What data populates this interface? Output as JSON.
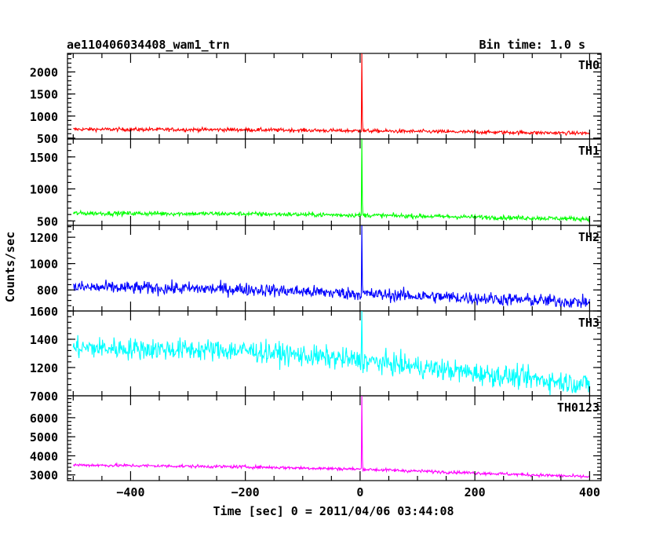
{
  "header": {
    "title": "ae110406034408_wam1_trn",
    "bin_time": "Bin time: 1.0 s"
  },
  "axes": {
    "xlabel": "Time [sec] 0 = 2011/04/06 03:44:08",
    "ylabel": "Counts/sec"
  },
  "chart_data": {
    "type": "line",
    "xlim": [
      -510,
      420
    ],
    "x_ticks": [
      -400,
      -200,
      0,
      200,
      400
    ],
    "x_tick_labels": [
      "−400",
      "−200",
      "0",
      "200",
      "400"
    ],
    "panels": [
      {
        "name": "TH0",
        "color": "#ff0000",
        "ylim": [
          480,
          2420
        ],
        "y_ticks": [
          500,
          1000,
          1500,
          2000
        ],
        "y_tick_labels": [
          "500",
          "1000",
          "1500",
          "2000"
        ],
        "baseline": {
          "x": [
            -500,
            -200,
            0,
            400
          ],
          "y": [
            700,
            690,
            665,
            610
          ]
        },
        "noise": 30,
        "spike": {
          "x": 3,
          "peak": 2420
        },
        "x_range": [
          -500,
          400
        ]
      },
      {
        "name": "TH1",
        "color": "#00ff00",
        "ylim": [
          430,
          1780
        ],
        "y_ticks": [
          500,
          1000,
          1500
        ],
        "y_tick_labels": [
          "500",
          "1000",
          "1500"
        ],
        "baseline": {
          "x": [
            -500,
            -200,
            0,
            400
          ],
          "y": [
            620,
            610,
            590,
            530
          ]
        },
        "noise": 25,
        "spike": {
          "x": 3,
          "peak": 1780
        },
        "x_range": [
          -500,
          400
        ]
      },
      {
        "name": "TH2",
        "color": "#0000ff",
        "ylim": [
          640,
          1290
        ],
        "y_ticks": [
          800,
          1000,
          1200
        ],
        "y_tick_labels": [
          "800",
          "1000",
          "1200"
        ],
        "baseline": {
          "x": [
            -500,
            -200,
            0,
            400
          ],
          "y": [
            820,
            805,
            770,
            705
          ]
        },
        "noise": 35,
        "spike": {
          "x": 3,
          "peak": 1290
        },
        "x_range": [
          -500,
          400
        ]
      },
      {
        "name": "TH3",
        "color": "#00ffff",
        "ylim": [
          1000,
          1600
        ],
        "y_ticks": [
          1200,
          1400,
          1600
        ],
        "y_tick_labels": [
          "1200",
          "1400",
          "1600"
        ],
        "bottom_label": "7000",
        "baseline": {
          "x": [
            -500,
            -200,
            0,
            200,
            400
          ],
          "y": [
            1340,
            1320,
            1250,
            1160,
            1080
          ]
        },
        "noise": 55,
        "spike": {
          "x": 3,
          "peak": 1600
        },
        "x_range": [
          -500,
          400
        ]
      },
      {
        "name": "TH0123",
        "color": "#ff00ff",
        "ylim": [
          2700,
          7150
        ],
        "y_ticks": [
          3000,
          4000,
          5000,
          6000
        ],
        "y_tick_labels": [
          "3000",
          "4000",
          "5000",
          "6000"
        ],
        "baseline": {
          "x": [
            -500,
            -200,
            0,
            400
          ],
          "y": [
            3520,
            3420,
            3300,
            2900
          ]
        },
        "noise": 60,
        "spike": {
          "x": 3,
          "peak": 7150
        },
        "x_range": [
          -500,
          400
        ]
      }
    ]
  }
}
